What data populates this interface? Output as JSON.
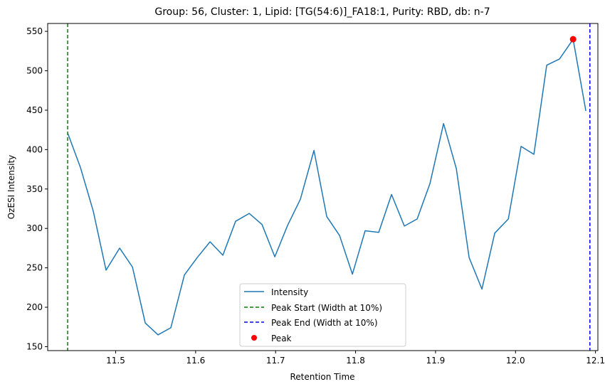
{
  "chart_data": {
    "type": "line",
    "title": "Group: 56, Cluster: 1, Lipid: [TG(54:6)]_FA18:1, Purity: RBD, db: n-7",
    "xlabel": "Retention Time",
    "ylabel": "OzESI Intensity",
    "xlim": [
      11.415,
      12.103
    ],
    "ylim": [
      145,
      560
    ],
    "xticks": [
      11.5,
      11.6,
      11.7,
      11.8,
      11.9,
      12.0,
      12.1
    ],
    "xtick_labels": [
      "11.5",
      "11.6",
      "11.7",
      "11.8",
      "11.9",
      "12.0",
      "12.1"
    ],
    "yticks": [
      150,
      200,
      250,
      300,
      350,
      400,
      450,
      500,
      550
    ],
    "ytick_labels": [
      "150",
      "200",
      "250",
      "300",
      "350",
      "400",
      "450",
      "500",
      "550"
    ],
    "grid": false,
    "legend_position": "lower-center",
    "series": [
      {
        "name": "Intensity",
        "color": "#1f77b4",
        "x": [
          11.44,
          11.456,
          11.472,
          11.488,
          11.505,
          11.521,
          11.537,
          11.553,
          11.569,
          11.586,
          11.602,
          11.618,
          11.634,
          11.65,
          11.667,
          11.683,
          11.699,
          11.715,
          11.731,
          11.748,
          11.764,
          11.78,
          11.796,
          11.812,
          11.829,
          11.845,
          11.861,
          11.877,
          11.893,
          11.91,
          11.926,
          11.942,
          11.958,
          11.974,
          11.991,
          12.007,
          12.023,
          12.039,
          12.055,
          12.072,
          12.088
        ],
        "y": [
          421,
          377,
          322,
          247,
          275,
          251,
          180,
          165,
          174,
          241,
          263,
          283,
          266,
          309,
          319,
          305,
          264,
          304,
          337,
          399,
          315,
          291,
          242,
          297,
          295,
          343,
          303,
          312,
          357,
          433,
          376,
          263,
          223,
          294,
          312,
          404,
          394,
          507,
          515,
          540,
          449
        ]
      }
    ],
    "vlines": [
      {
        "name": "Peak Start (Width at 10%)",
        "x": 11.44,
        "color": "#008000",
        "style": "dashed"
      },
      {
        "name": "Peak End (Width at 10%)",
        "x": 12.093,
        "color": "#0000ff",
        "style": "dashed"
      }
    ],
    "points": [
      {
        "name": "Peak",
        "x": 12.072,
        "y": 540,
        "color": "#ff0000"
      }
    ]
  }
}
